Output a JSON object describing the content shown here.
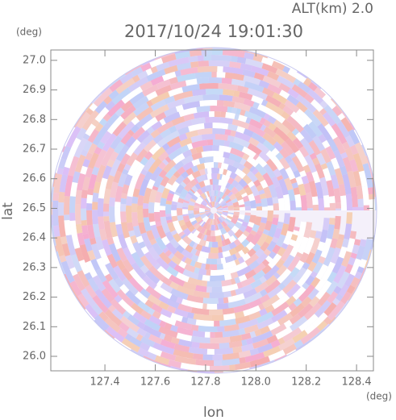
{
  "chart_data": {
    "type": "radar-image",
    "title": "2017/10/24 19:01:30",
    "subtitle": "ALT(km) 2.0",
    "x_label": "lon",
    "y_label": "lat",
    "x_unit": "(deg)",
    "y_unit": "(deg)",
    "xlim": [
      127.185,
      128.467
    ],
    "ylim": [
      25.951,
      27.035
    ],
    "xticks": [
      127.4,
      127.6,
      127.8,
      {
        "value": 128.0,
        "label": "128.0"
      },
      128.2,
      128.4
    ],
    "yticks": [
      {
        "value": 26.0,
        "label": "26.0"
      },
      26.1,
      26.2,
      26.3,
      26.4,
      26.5,
      26.6,
      26.7,
      26.8,
      26.9,
      {
        "value": 27.0,
        "label": "27.0"
      }
    ]
  }
}
